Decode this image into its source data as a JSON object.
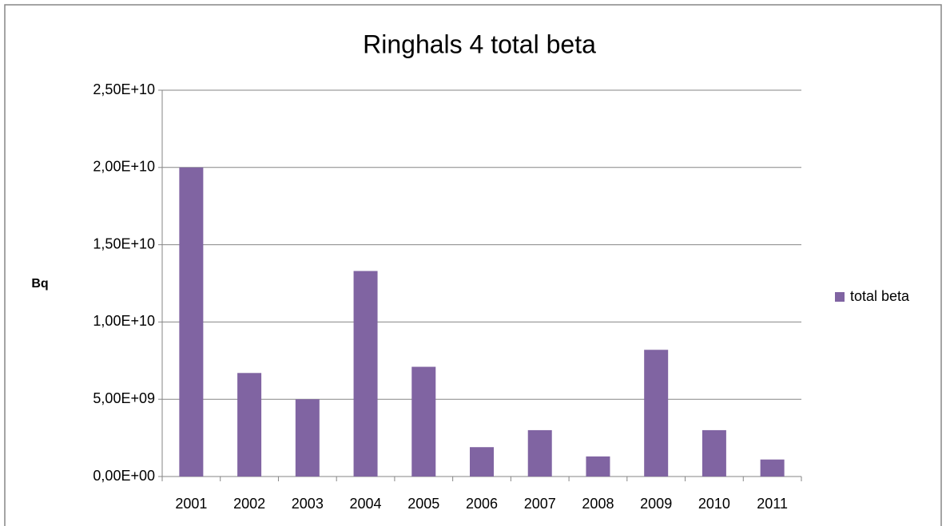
{
  "chart_data": {
    "type": "bar",
    "title": "Ringhals 4 total beta",
    "y_label": "Bq",
    "categories": [
      "2001",
      "2002",
      "2003",
      "2004",
      "2005",
      "2006",
      "2007",
      "2008",
      "2009",
      "2010",
      "2011"
    ],
    "series": [
      {
        "name": "total beta",
        "color": "#8064a2",
        "values": [
          20000000000,
          6700000000,
          5000000000,
          13300000000,
          7100000000,
          1900000000,
          3000000000,
          1300000000,
          8200000000,
          3000000000,
          1100000000
        ]
      }
    ],
    "ylim": [
      0,
      25000000000
    ],
    "yticks": [
      {
        "value": 0,
        "label": "0,00E+00"
      },
      {
        "value": 5000000000,
        "label": "5,00E+09"
      },
      {
        "value": 10000000000,
        "label": "1,00E+10"
      },
      {
        "value": 15000000000,
        "label": "1,50E+10"
      },
      {
        "value": 20000000000,
        "label": "2,00E+10"
      },
      {
        "value": 25000000000,
        "label": "2,50E+10"
      }
    ],
    "grid": true,
    "legend": "right"
  }
}
